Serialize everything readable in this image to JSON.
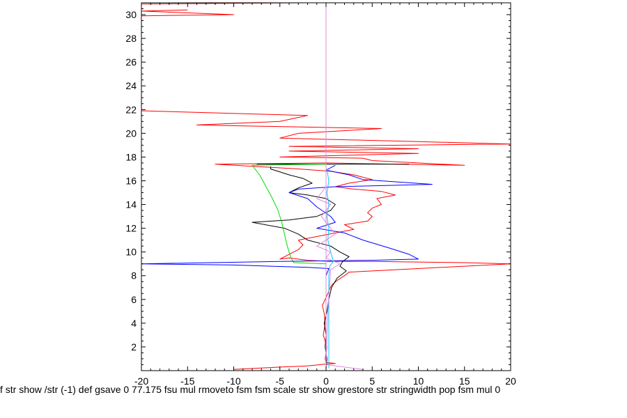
{
  "chart_data": {
    "type": "line",
    "title": "",
    "xlabel": "",
    "ylabel": "",
    "xlim": [
      -20,
      20
    ],
    "ylim": [
      0,
      31
    ],
    "x_ticks": [
      -20,
      -15,
      -10,
      -5,
      0,
      5,
      10,
      15,
      20
    ],
    "y_ticks": [
      2,
      4,
      6,
      8,
      10,
      12,
      14,
      16,
      18,
      20,
      22,
      24,
      26,
      28,
      30
    ],
    "x_tick_labels": [
      "-20",
      "-15",
      "-10",
      "-5",
      "0",
      "5",
      "10",
      "15",
      "20"
    ],
    "y_tick_labels": [
      "2",
      "4",
      "6",
      "8",
      "10",
      "12",
      "14",
      "16",
      "18",
      "20",
      "22",
      "24",
      "26",
      "28",
      "30"
    ],
    "grid": false,
    "legend": "none",
    "series": [
      {
        "color": "#ff0000",
        "points": [
          [
            -10,
            0.1
          ],
          [
            -5,
            0.3
          ],
          [
            -2,
            0.4
          ],
          [
            0,
            0.55
          ],
          [
            1,
            0.6
          ],
          [
            0,
            0.7
          ],
          [
            -0.1,
            1.0
          ],
          [
            0.1,
            2.0
          ],
          [
            -0.3,
            3.0
          ],
          [
            -0.1,
            4.0
          ],
          [
            -0.2,
            4.8
          ],
          [
            -0.4,
            5.5
          ],
          [
            -0.1,
            6.0
          ],
          [
            0.2,
            6.5
          ],
          [
            0.6,
            7.2
          ],
          [
            1.2,
            7.6
          ],
          [
            2.0,
            8.0
          ],
          [
            2.5,
            8.3
          ],
          [
            5,
            8.4
          ],
          [
            10,
            8.6
          ],
          [
            15,
            8.8
          ],
          [
            20,
            9.0
          ],
          [
            15,
            9.1
          ],
          [
            5,
            9.2
          ],
          [
            0.5,
            9.2
          ],
          [
            -2,
            9.3
          ],
          [
            -4,
            9.5
          ],
          [
            -5,
            9.4
          ],
          [
            -4,
            9.8
          ],
          [
            -3,
            10.2
          ],
          [
            -2.5,
            10.6
          ],
          [
            -3,
            11.0
          ],
          [
            -1,
            11.3
          ],
          [
            1,
            11.6
          ],
          [
            3,
            11.9
          ],
          [
            2,
            12.3
          ],
          [
            4.5,
            12.6
          ],
          [
            5,
            13.0
          ],
          [
            4.5,
            13.3
          ],
          [
            5,
            13.7
          ],
          [
            6,
            14.0
          ],
          [
            5.5,
            14.5
          ],
          [
            7.5,
            14.8
          ],
          [
            6,
            15.1
          ],
          [
            3,
            15.3
          ],
          [
            1,
            15.5
          ],
          [
            2.5,
            15.8
          ],
          [
            5,
            16.1
          ],
          [
            3,
            16.5
          ],
          [
            0.5,
            16.8
          ],
          [
            -3,
            17.0
          ],
          [
            -12,
            17.4
          ],
          [
            0,
            17.5
          ],
          [
            15,
            17.3
          ],
          [
            5,
            17.7
          ],
          [
            4,
            17.9
          ],
          [
            -5,
            18.0
          ],
          [
            10,
            18.3
          ],
          [
            -4,
            18.5
          ],
          [
            10,
            18.7
          ],
          [
            -4,
            18.9
          ],
          [
            20,
            19.1
          ],
          [
            10,
            19.3
          ],
          [
            -5,
            19.6
          ],
          [
            -3,
            20.0
          ],
          [
            6,
            20.4
          ],
          [
            -14,
            20.7
          ],
          [
            -5,
            21.0
          ],
          [
            -2,
            21.5
          ],
          [
            -20,
            21.9
          ]
        ]
      },
      {
        "color": "#ff0000",
        "points": [
          [
            -20,
            29.9
          ],
          [
            -10,
            30.0
          ],
          [
            -20,
            30.3
          ],
          [
            -15,
            30.4
          ]
        ]
      },
      {
        "color": "#ff0000",
        "points": [
          [
            -20,
            30.9
          ],
          [
            -2,
            31.0
          ]
        ]
      },
      {
        "color": "#000000",
        "points": [
          [
            0,
            0.2
          ],
          [
            0.1,
            1.0
          ],
          [
            -0.1,
            2.0
          ],
          [
            0,
            3.0
          ],
          [
            -0.2,
            4.0
          ],
          [
            0.1,
            5.0
          ],
          [
            0.3,
            6.0
          ],
          [
            0.6,
            7.0
          ],
          [
            1.2,
            7.8
          ],
          [
            2.2,
            8.4
          ],
          [
            1.5,
            8.8
          ],
          [
            1.8,
            9.2
          ],
          [
            2.5,
            9.6
          ],
          [
            1.5,
            10.0
          ],
          [
            0.5,
            10.5
          ],
          [
            -2,
            11.0
          ],
          [
            -3,
            11.5
          ],
          [
            -4.5,
            12.0
          ],
          [
            -8,
            12.5
          ],
          [
            -4,
            12.7
          ],
          [
            -1,
            13.0
          ],
          [
            0.5,
            13.5
          ],
          [
            1,
            14.0
          ],
          [
            0,
            14.5
          ],
          [
            -2,
            14.8
          ],
          [
            -4,
            15.0
          ],
          [
            -3,
            15.4
          ],
          [
            -1.5,
            15.8
          ],
          [
            -2.5,
            16.2
          ],
          [
            -4,
            16.5
          ],
          [
            -6,
            17.0
          ],
          [
            -6,
            17.2
          ]
        ]
      },
      {
        "color": "#000000",
        "points": [
          [
            -7.5,
            17.4
          ],
          [
            -3,
            17.4
          ],
          [
            5,
            17.4
          ],
          [
            9,
            17.4
          ]
        ]
      },
      {
        "color": "#00dd00",
        "points": [
          [
            0,
            9.0
          ],
          [
            -3.5,
            9.1
          ],
          [
            -3.8,
            9.5
          ],
          [
            -4.2,
            10.5
          ],
          [
            -4.5,
            11.5
          ],
          [
            -4.8,
            12.5
          ],
          [
            -5.2,
            13.5
          ],
          [
            -5.8,
            14.5
          ],
          [
            -6.5,
            15.5
          ],
          [
            -7.2,
            16.5
          ],
          [
            -8,
            17.3
          ],
          [
            0,
            17.4
          ]
        ]
      },
      {
        "color": "#0000ff",
        "points": [
          [
            0,
            0.3
          ],
          [
            0,
            2.0
          ],
          [
            0,
            4.0
          ],
          [
            0,
            6.0
          ],
          [
            0,
            8.0
          ],
          [
            0.3,
            8.6
          ],
          [
            -2,
            8.7
          ],
          [
            -10,
            8.9
          ],
          [
            -20,
            9.0
          ],
          [
            -5,
            9.2
          ],
          [
            5,
            9.3
          ],
          [
            10,
            9.4
          ],
          [
            9,
            9.8
          ],
          [
            7,
            10.3
          ],
          [
            4,
            11.0
          ],
          [
            2,
            11.6
          ],
          [
            -1,
            12.0
          ],
          [
            1,
            12.5
          ],
          [
            0.5,
            13.0
          ],
          [
            -1,
            13.8
          ],
          [
            -2,
            14.5
          ],
          [
            -4,
            15.0
          ],
          [
            -3,
            15.3
          ],
          [
            1,
            15.5
          ],
          [
            11.5,
            15.7
          ],
          [
            4,
            16.1
          ],
          [
            2.5,
            16.5
          ],
          [
            0,
            16.9
          ],
          [
            1,
            17.3
          ]
        ]
      },
      {
        "color": "#00ccff",
        "points": [
          [
            0.3,
            0.2
          ],
          [
            0.3,
            4.0
          ],
          [
            0.3,
            8.0
          ],
          [
            0.4,
            8.8
          ],
          [
            0.8,
            9.2
          ],
          [
            0.5,
            10.0
          ],
          [
            0.2,
            11.0
          ],
          [
            0.3,
            12.0
          ],
          [
            0.1,
            13.0
          ],
          [
            0.3,
            14.0
          ],
          [
            0.1,
            15.0
          ],
          [
            0.3,
            16.0
          ],
          [
            0.1,
            17.0
          ]
        ]
      },
      {
        "color": "#dd88dd",
        "points": [
          [
            0,
            0.0
          ],
          [
            0,
            31.0
          ]
        ]
      },
      {
        "color": "#dd88dd",
        "points": [
          [
            4,
            0.1
          ],
          [
            0,
            0.5
          ],
          [
            0.2,
            5.0
          ],
          [
            0.5,
            8.5
          ],
          [
            1.5,
            9.0
          ],
          [
            0,
            9.5
          ],
          [
            0.5,
            10.0
          ],
          [
            -1,
            10.5
          ],
          [
            1,
            11.5
          ],
          [
            -0.5,
            13.0
          ],
          [
            0.5,
            14.0
          ],
          [
            -1,
            14.5
          ],
          [
            0,
            15.5
          ]
        ]
      }
    ]
  },
  "footer": {
    "text": "f str show /str (-1) def gsave 0 77.175 fsu mul rmoveto fsm fsm scale str show grestore str stringwidth pop fsm mul 0"
  }
}
